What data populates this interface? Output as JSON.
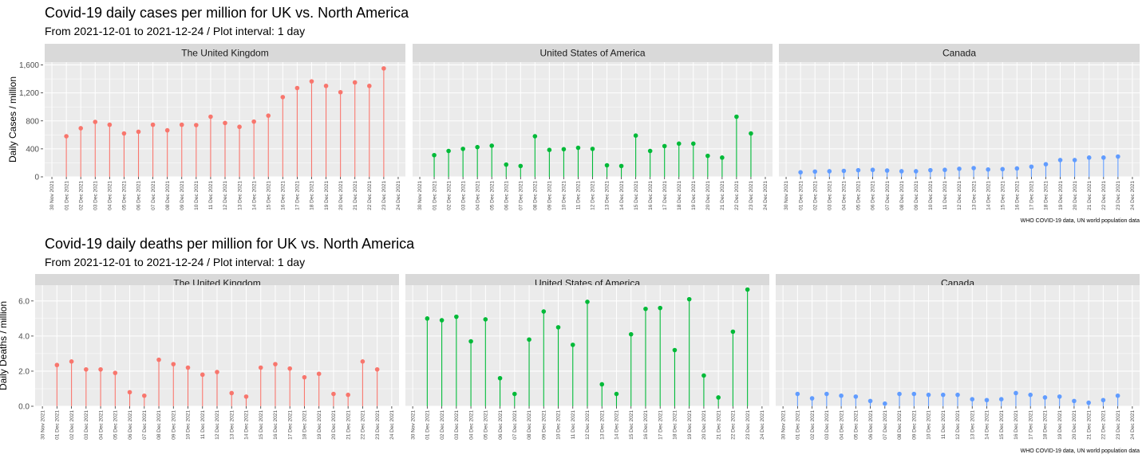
{
  "charts": [
    {
      "id": "cases",
      "title": "Covid-19 daily cases per million for UK vs. North America",
      "subtitle": "From 2021-12-01 to 2021-12-24 / Plot interval: 1 day",
      "caption": "WHO COVID-19 data, UN world population data",
      "chart_data": {
        "type": "scatter",
        "style": "lollipop",
        "facets": [
          "The United Kingdom",
          "United States of America",
          "Canada"
        ],
        "ylabel": "Daily Cases / million",
        "xlabel": "",
        "ylim": [
          0,
          1640
        ],
        "yticks": [
          0,
          400,
          800,
          1200,
          1600
        ],
        "ytick_labels": [
          "0",
          "400",
          "800",
          "1,200",
          "1,600"
        ],
        "x_axis_ticks": [
          "30 Nov 2021",
          "01 Dec 2021",
          "02 Dec 2021",
          "03 Dec 2021",
          "04 Dec 2021",
          "05 Dec 2021",
          "06 Dec 2021",
          "07 Dec 2021",
          "08 Dec 2021",
          "09 Dec 2021",
          "10 Dec 2021",
          "11 Dec 2021",
          "12 Dec 2021",
          "13 Dec 2021",
          "14 Dec 2021",
          "15 Dec 2021",
          "16 Dec 2021",
          "17 Dec 2021",
          "18 Dec 2021",
          "19 Dec 2021",
          "20 Dec 2021",
          "21 Dec 2021",
          "22 Dec 2021",
          "23 Dec 2021",
          "24 Dec 2021"
        ],
        "x": [
          "2021-12-01",
          "2021-12-02",
          "2021-12-03",
          "2021-12-04",
          "2021-12-05",
          "2021-12-06",
          "2021-12-07",
          "2021-12-08",
          "2021-12-09",
          "2021-12-10",
          "2021-12-11",
          "2021-12-12",
          "2021-12-13",
          "2021-12-14",
          "2021-12-15",
          "2021-12-16",
          "2021-12-17",
          "2021-12-18",
          "2021-12-19",
          "2021-12-20",
          "2021-12-21",
          "2021-12-22",
          "2021-12-23"
        ],
        "grid": true,
        "legend": "none",
        "series": [
          {
            "facet": "The United Kingdom",
            "color": "#F8766D",
            "values": [
              580,
              695,
              785,
              745,
              620,
              645,
              745,
              665,
              745,
              740,
              860,
              770,
              715,
              790,
              875,
              1140,
              1270,
              1365,
              1300,
              1210,
              1350,
              1300,
              1550
            ]
          },
          {
            "facet": "United States of America",
            "color": "#00BA38",
            "values": [
              310,
              370,
              400,
              425,
              445,
              175,
              155,
              580,
              385,
              395,
              415,
              400,
              165,
              155,
              590,
              370,
              440,
              475,
              475,
              300,
              275,
              860,
              620
            ]
          },
          {
            "facet": "Canada",
            "color": "#619CFF",
            "values": [
              65,
              75,
              80,
              85,
              95,
              100,
              90,
              80,
              80,
              95,
              100,
              115,
              125,
              105,
              110,
              120,
              145,
              180,
              240,
              240,
              275,
              275,
              290
            ]
          }
        ]
      }
    },
    {
      "id": "deaths",
      "title": "Covid-19 daily deaths per million for UK vs. North America",
      "subtitle": "From 2021-12-01 to 2021-12-24 / Plot interval: 1 day",
      "caption": "WHO COVID-19 data, UN world population data",
      "chart_data": {
        "type": "scatter",
        "style": "lollipop",
        "facets": [
          "The United Kingdom",
          "United States of America",
          "Canada"
        ],
        "ylabel": "Daily Deaths / million",
        "xlabel": "",
        "ylim": [
          0,
          6.9
        ],
        "yticks": [
          0,
          2,
          4,
          6
        ],
        "ytick_labels": [
          "0.0",
          "2.0",
          "4.0",
          "6.0"
        ],
        "x_axis_ticks": [
          "30 Nov 2021",
          "01 Dec 2021",
          "02 Dec 2021",
          "03 Dec 2021",
          "04 Dec 2021",
          "05 Dec 2021",
          "06 Dec 2021",
          "07 Dec 2021",
          "08 Dec 2021",
          "09 Dec 2021",
          "10 Dec 2021",
          "11 Dec 2021",
          "12 Dec 2021",
          "13 Dec 2021",
          "14 Dec 2021",
          "15 Dec 2021",
          "16 Dec 2021",
          "17 Dec 2021",
          "18 Dec 2021",
          "19 Dec 2021",
          "20 Dec 2021",
          "21 Dec 2021",
          "22 Dec 2021",
          "23 Dec 2021",
          "24 Dec 2021"
        ],
        "x": [
          "2021-12-01",
          "2021-12-02",
          "2021-12-03",
          "2021-12-04",
          "2021-12-05",
          "2021-12-06",
          "2021-12-07",
          "2021-12-08",
          "2021-12-09",
          "2021-12-10",
          "2021-12-11",
          "2021-12-12",
          "2021-12-13",
          "2021-12-14",
          "2021-12-15",
          "2021-12-16",
          "2021-12-17",
          "2021-12-18",
          "2021-12-19",
          "2021-12-20",
          "2021-12-21",
          "2021-12-22",
          "2021-12-23"
        ],
        "grid": true,
        "legend": "none",
        "series": [
          {
            "facet": "The United Kingdom",
            "color": "#F8766D",
            "values": [
              2.35,
              2.55,
              2.1,
              2.1,
              1.9,
              0.8,
              0.6,
              2.65,
              2.4,
              2.2,
              1.8,
              1.95,
              0.75,
              0.55,
              2.2,
              2.4,
              2.15,
              1.65,
              1.85,
              0.7,
              0.65,
              2.55,
              2.1
            ]
          },
          {
            "facet": "United States of America",
            "color": "#00BA38",
            "values": [
              5.0,
              4.9,
              5.1,
              3.7,
              4.95,
              1.6,
              0.7,
              3.8,
              5.4,
              4.5,
              3.5,
              5.95,
              1.25,
              0.7,
              4.1,
              5.55,
              5.6,
              3.2,
              6.1,
              1.75,
              0.5,
              4.25,
              6.65
            ]
          },
          {
            "facet": "Canada",
            "color": "#619CFF",
            "values": [
              0.7,
              0.45,
              0.7,
              0.6,
              0.55,
              0.3,
              0.15,
              0.7,
              0.7,
              0.65,
              0.65,
              0.65,
              0.4,
              0.35,
              0.4,
              0.75,
              0.65,
              0.5,
              0.55,
              0.3,
              0.2,
              0.35,
              0.6
            ]
          }
        ]
      }
    }
  ]
}
